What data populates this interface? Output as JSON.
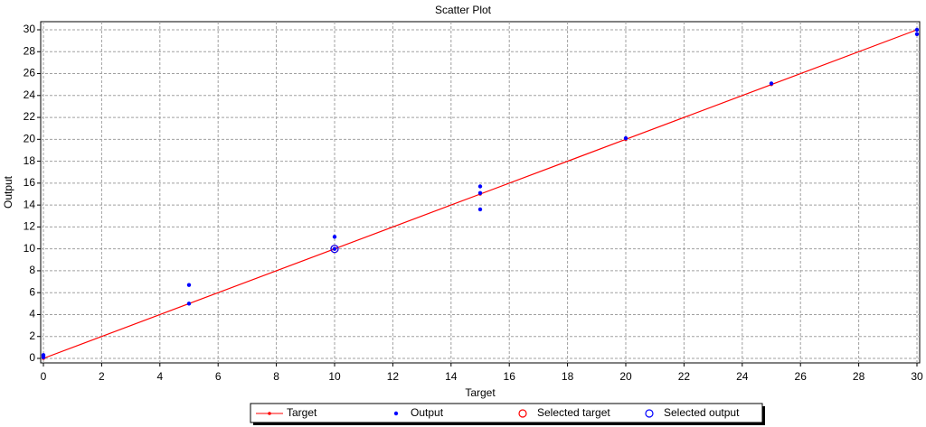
{
  "chart_data": {
    "type": "scatter",
    "title": "Scatter Plot",
    "x_label": "Target",
    "y_label": "Output",
    "xlim": [
      0,
      30
    ],
    "ylim": [
      0,
      30
    ],
    "xticks": [
      0,
      2,
      4,
      6,
      8,
      10,
      12,
      14,
      16,
      18,
      20,
      22,
      24,
      26,
      28,
      30
    ],
    "yticks": [
      0,
      2,
      4,
      6,
      8,
      10,
      12,
      14,
      16,
      18,
      20,
      22,
      24,
      26,
      28,
      30
    ],
    "grid": true,
    "legend": "bottom",
    "series": [
      {
        "name": "Target",
        "color": "#ff0000",
        "mode": "line",
        "x": [
          0,
          5,
          10,
          15,
          20,
          25,
          30
        ],
        "values": [
          0,
          5,
          10,
          15,
          20,
          25,
          30
        ]
      },
      {
        "name": "Output",
        "color": "#0000ff",
        "mode": "points",
        "x": [
          0,
          0,
          5,
          5,
          10,
          10,
          15,
          15,
          15,
          20,
          25,
          30,
          30
        ],
        "values": [
          0.3,
          0.1,
          6.7,
          5.0,
          11.1,
          10,
          15.7,
          15.1,
          13.6,
          20.1,
          25.1,
          30,
          29.6
        ]
      },
      {
        "name": "Selected target",
        "color": "#ff0000",
        "mode": "circle",
        "x": [
          10
        ],
        "values": [
          10
        ]
      },
      {
        "name": "Selected output",
        "color": "#0000ff",
        "mode": "circle",
        "x": [
          10
        ],
        "values": [
          10
        ]
      }
    ]
  }
}
